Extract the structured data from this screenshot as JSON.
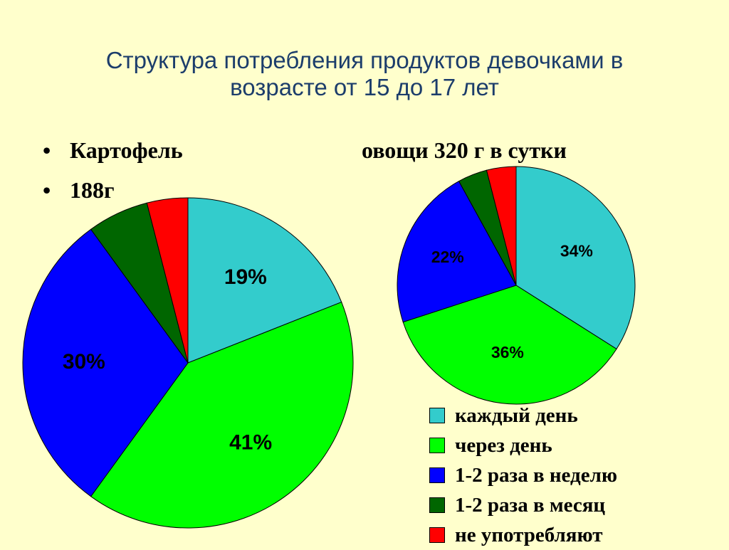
{
  "title_lines": [
    "Структура потребления продуктов девочками в",
    "возрасте от 15 до 17 лет"
  ],
  "bullets": {
    "potato_label": "Картофель",
    "potato_amount": "188г",
    "vegetables_label": "овощи 320 г в сутки"
  },
  "colors": {
    "background": "#ffffcc",
    "title": "#1c3d6b"
  },
  "legend": [
    {
      "label": "каждый день",
      "color": "#33cccc"
    },
    {
      "label": "через день",
      "color": "#00ff00"
    },
    {
      "label": "1-2 раза в неделю",
      "color": "#0000ff"
    },
    {
      "label": "1-2 раза в месяц",
      "color": "#006600"
    },
    {
      "label": "не употребляют",
      "color": "#ff0000"
    }
  ],
  "chart_data": [
    {
      "type": "pie",
      "title": "Картофель",
      "categories": [
        "каждый день",
        "через день",
        "1-2 раза в неделю",
        "1-2 раза в месяц",
        "не употребляют"
      ],
      "values": [
        19,
        41,
        30,
        6,
        4
      ],
      "labels": [
        "19%",
        "41%",
        "30%",
        "",
        ""
      ]
    },
    {
      "type": "pie",
      "title": "овощи 320 г в сутки",
      "categories": [
        "каждый день",
        "через день",
        "1-2 раза в неделю",
        "1-2 раза в месяц",
        "не употребляют"
      ],
      "values": [
        34,
        36,
        22,
        4,
        4
      ],
      "labels": [
        "34%",
        "36%",
        "22%",
        "",
        ""
      ]
    }
  ]
}
